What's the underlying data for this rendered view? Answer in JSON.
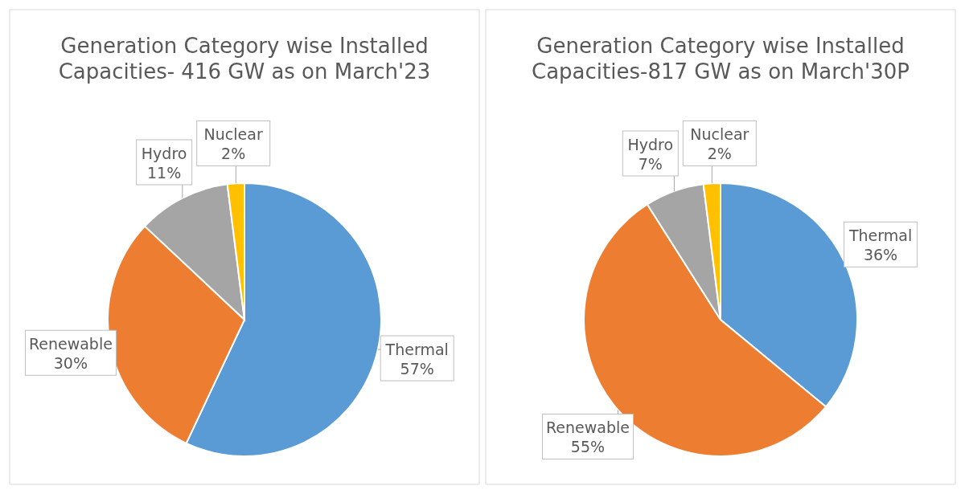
{
  "chart_data": [
    {
      "type": "pie",
      "title": "Generation Category wise Installed Capacities- 416 GW as on March'23",
      "categories": [
        "Thermal",
        "Renewable",
        "Hydro",
        "Nuclear"
      ],
      "values": [
        57,
        30,
        11,
        2
      ],
      "value_labels": [
        "57%",
        "30%",
        "11%",
        "2%"
      ],
      "colors": [
        "#5b9bd5",
        "#ed7d31",
        "#a5a5a5",
        "#ffc000"
      ]
    },
    {
      "type": "pie",
      "title": "Generation Category wise Installed Capacities-817 GW as on March'30P",
      "categories": [
        "Thermal",
        "Renewable",
        "Hydro",
        "Nuclear"
      ],
      "values": [
        36,
        55,
        7,
        2
      ],
      "value_labels": [
        "36%",
        "55%",
        "7%",
        "2%"
      ],
      "colors": [
        "#5b9bd5",
        "#ed7d31",
        "#a5a5a5",
        "#ffc000"
      ]
    }
  ]
}
